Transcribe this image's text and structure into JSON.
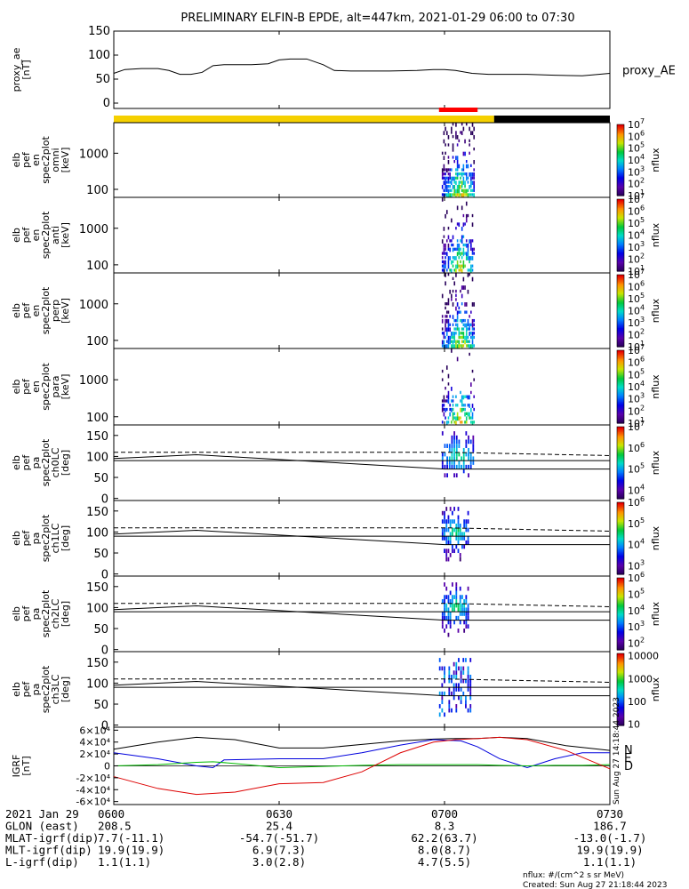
{
  "title": "PRELIMINARY ELFIN-B EPDE, alt=447km, 2021-01-29 06:00 to 07:30",
  "colors": {
    "sunlit_bar": "#f5d000",
    "eclipse_bar": "#000000",
    "science_bar": "#ff0000",
    "bx": "#0000dd",
    "by": "#00bb00",
    "bz": "#dd0000",
    "total": "#000000"
  },
  "time_axis": {
    "labels": [
      "0600",
      "0630",
      "0700",
      "0730"
    ],
    "rows": [
      {
        "label": "2021 Jan 29",
        "values": [
          "0600",
          "0630",
          "0700",
          "0730"
        ]
      },
      {
        "label": "GLON (east)",
        "values": [
          "208.5",
          "25.4",
          "8.3",
          "186.7"
        ]
      },
      {
        "label": "MLAT-igrf(dip)",
        "values": [
          "7.7(-11.1)",
          "-54.7(-51.7)",
          "62.2(63.7)",
          "-13.0(-1.7)"
        ]
      },
      {
        "label": "MLT-igrf(dip)",
        "values": [
          "19.9(19.9)",
          "6.9(7.3)",
          "8.0(8.7)",
          "19.9(19.9)"
        ]
      },
      {
        "label": "L-igrf(dip)",
        "values": [
          "1.1(1.1)",
          "3.0(2.8)",
          "4.7(5.5)",
          "1.1(1.1)"
        ]
      }
    ]
  },
  "footer": {
    "units": "nflux: #/(cm^2 s sr MeV)",
    "created": "Created: Sun Aug 27 21:18:44 2023",
    "stamp": "Sun Aug 27 14:18:44 2023"
  },
  "chart_data": [
    {
      "id": "proxy_ae",
      "type": "line",
      "ylabel": [
        "proxy_ae",
        "[nT]"
      ],
      "ylim": [
        0,
        150
      ],
      "yticks": [
        0,
        50,
        100,
        150
      ],
      "legend": "proxy_AE",
      "x_minutes": [
        0,
        2,
        5,
        8,
        10,
        12,
        14,
        16,
        18,
        20,
        22,
        25,
        28,
        30,
        32,
        35,
        38,
        40,
        43,
        45,
        50,
        55,
        58,
        60,
        62,
        65,
        68,
        70,
        72,
        75,
        80,
        85,
        88,
        90
      ],
      "values": [
        62,
        70,
        72,
        72,
        68,
        60,
        60,
        64,
        78,
        80,
        80,
        80,
        82,
        90,
        92,
        92,
        80,
        68,
        67,
        67,
        67,
        68,
        70,
        70,
        68,
        62,
        60,
        60,
        60,
        60,
        58,
        57,
        60,
        62
      ]
    },
    {
      "id": "bars",
      "type": "status",
      "sunlit_minutes": [
        0,
        69
      ],
      "eclipse_minutes": [
        69,
        90
      ],
      "science_minutes": [
        59,
        66
      ]
    },
    {
      "id": "omni",
      "type": "heatmap",
      "ylabel": [
        "elb",
        "pef",
        "en",
        "spec2plot",
        "omni",
        "[keV]"
      ],
      "yscale": "log",
      "ylim": [
        60,
        7000
      ],
      "yticks": [
        100,
        1000
      ],
      "yticklabels": [
        "100",
        "1000"
      ],
      "colorbar": {
        "label": "nflux",
        "exponents": [
          1,
          2,
          3,
          4,
          5,
          6,
          7
        ],
        "min_exp": 1,
        "max_exp": 7
      },
      "event_minutes": [
        59.5,
        65.5
      ]
    },
    {
      "id": "anti",
      "type": "heatmap",
      "ylabel": [
        "elb",
        "pef",
        "en",
        "spec2plot",
        "anti",
        "[keV]"
      ],
      "yscale": "log",
      "ylim": [
        60,
        7000
      ],
      "yticks": [
        100,
        1000
      ],
      "yticklabels": [
        "100",
        "1000"
      ],
      "colorbar": {
        "label": "nflux",
        "exponents": [
          1,
          2,
          3,
          4,
          5,
          6,
          7
        ],
        "min_exp": 1,
        "max_exp": 7
      },
      "event_minutes": [
        59.5,
        65.5
      ]
    },
    {
      "id": "perp",
      "type": "heatmap",
      "ylabel": [
        "elb",
        "pef",
        "en",
        "spec2plot",
        "perp",
        "[keV]"
      ],
      "yscale": "log",
      "ylim": [
        60,
        7000
      ],
      "yticks": [
        100,
        1000
      ],
      "yticklabels": [
        "100",
        "1000"
      ],
      "colorbar": {
        "label": "nflux",
        "exponents": [
          1,
          2,
          3,
          4,
          5,
          6,
          7
        ],
        "min_exp": 1,
        "max_exp": 7
      },
      "event_minutes": [
        59.5,
        65.5
      ]
    },
    {
      "id": "para",
      "type": "heatmap",
      "ylabel": [
        "elb",
        "pef",
        "en",
        "spec2plot",
        "para",
        "[keV]"
      ],
      "yscale": "log",
      "ylim": [
        60,
        7000
      ],
      "yticks": [
        100,
        1000
      ],
      "yticklabels": [
        "100",
        "1000"
      ],
      "colorbar": {
        "label": "nflux",
        "exponents": [
          1,
          2,
          3,
          4,
          5,
          6,
          7
        ],
        "min_exp": 1,
        "max_exp": 7
      },
      "event_minutes": [
        59.5,
        65.5
      ]
    },
    {
      "id": "ch0",
      "type": "heatmap",
      "ylabel": [
        "elb",
        "pef",
        "pa",
        "spec2plot",
        "ch0LC",
        "[deg]"
      ],
      "ylim": [
        -5,
        175
      ],
      "yticks": [
        0,
        50,
        100,
        150
      ],
      "yticklabels": [
        "0",
        "50",
        "100",
        "150"
      ],
      "colorbar": {
        "label": "nflux",
        "exponents": [
          4,
          5,
          6,
          7
        ],
        "min_exp": 3.6,
        "max_exp": 7
      },
      "event_minutes": [
        59.5,
        65.5
      ],
      "lc_x": [
        0,
        15,
        60,
        90
      ],
      "lc_solid": [
        95,
        104,
        70,
        70
      ],
      "lc_dashed": [
        110,
        110,
        110,
        102
      ],
      "lc_flat": 90
    },
    {
      "id": "ch1",
      "type": "heatmap",
      "ylabel": [
        "elb",
        "pef",
        "pa",
        "spec2plot",
        "ch1LC",
        "[deg]"
      ],
      "ylim": [
        -5,
        175
      ],
      "yticks": [
        0,
        50,
        100,
        150
      ],
      "yticklabels": [
        "0",
        "50",
        "100",
        "150"
      ],
      "colorbar": {
        "label": "nflux",
        "exponents": [
          3,
          4,
          5,
          6
        ],
        "min_exp": 2.6,
        "max_exp": 6
      },
      "event_minutes": [
        59.5,
        64.5
      ],
      "lc_x": [
        0,
        15,
        60,
        90
      ],
      "lc_solid": [
        95,
        104,
        70,
        70
      ],
      "lc_dashed": [
        110,
        110,
        110,
        102
      ],
      "lc_flat": 90
    },
    {
      "id": "ch2",
      "type": "heatmap",
      "ylabel": [
        "elb",
        "pef",
        "pa",
        "spec2plot",
        "ch2LC",
        "[deg]"
      ],
      "ylim": [
        -5,
        175
      ],
      "yticks": [
        0,
        50,
        100,
        150
      ],
      "yticklabels": [
        "0",
        "50",
        "100",
        "150"
      ],
      "colorbar": {
        "label": "nflux",
        "exponents": [
          2,
          3,
          4,
          5,
          6
        ],
        "min_exp": 1.6,
        "max_exp": 6
      },
      "event_minutes": [
        59.5,
        64.5
      ],
      "lc_x": [
        0,
        15,
        60,
        90
      ],
      "lc_solid": [
        95,
        104,
        70,
        70
      ],
      "lc_dashed": [
        110,
        110,
        110,
        102
      ],
      "lc_flat": 90
    },
    {
      "id": "ch3",
      "type": "heatmap",
      "ylabel": [
        "elb",
        "pef",
        "pa",
        "spec2plot",
        "ch3LC",
        "[deg]"
      ],
      "ylim": [
        -5,
        175
      ],
      "yticks": [
        0,
        50,
        100,
        150
      ],
      "yticklabels": [
        "0",
        "50",
        "100",
        "150"
      ],
      "colorbar": {
        "label": "nflux",
        "ticks": [
          "10",
          "100",
          "1000",
          "10000"
        ],
        "min_exp": 0.95,
        "max_exp": 4.1,
        "tick_exps": [
          1,
          2,
          3,
          4
        ]
      },
      "event_minutes": [
        59.0,
        65.0
      ],
      "lc_x": [
        0,
        15,
        60,
        90
      ],
      "lc_solid": [
        95,
        104,
        70,
        70
      ],
      "lc_dashed": [
        110,
        110,
        110,
        102
      ],
      "lc_flat": 90
    },
    {
      "id": "igrf",
      "type": "line",
      "ylabel": [
        "IGRF",
        "[nT]"
      ],
      "ylim": [
        -65000,
        65000
      ],
      "yticks": [
        -60000,
        -40000,
        -20000,
        0,
        20000,
        40000,
        60000
      ],
      "yticklabels": [
        "-6×10⁴",
        "-4×10⁴",
        "-2×10⁴",
        "0",
        "2×10⁴",
        "4×10⁴",
        "6×10⁴"
      ],
      "legend": [
        "N",
        "E",
        "D"
      ],
      "series": [
        {
          "name": "total",
          "color": "#000000",
          "x": [
            0,
            8,
            15,
            22,
            30,
            38,
            45,
            52,
            58,
            62,
            66,
            70,
            75,
            82,
            90
          ],
          "values": [
            28000,
            40000,
            48000,
            44000,
            30000,
            30000,
            36000,
            42000,
            45000,
            46000,
            46000,
            48000,
            46000,
            34000,
            26000
          ]
        },
        {
          "name": "bx",
          "color": "#0000dd",
          "x": [
            0,
            8,
            15,
            18,
            20,
            30,
            38,
            45,
            52,
            58,
            63,
            66,
            70,
            75,
            80,
            85,
            90
          ],
          "values": [
            22000,
            12000,
            0,
            -3000,
            10000,
            12000,
            12000,
            22000,
            35000,
            44000,
            42000,
            32000,
            12000,
            -3000,
            12000,
            22000,
            22000
          ]
        },
        {
          "name": "by",
          "color": "#00bb00",
          "x": [
            0,
            8,
            15,
            18,
            22,
            30,
            38,
            45,
            52,
            58,
            63,
            66,
            70,
            75,
            80,
            85,
            90
          ],
          "values": [
            0,
            2000,
            6000,
            7000,
            4000,
            -3000,
            -1000,
            1000,
            2000,
            2000,
            2000,
            2000,
            1000,
            0,
            1000,
            1000,
            2000
          ]
        },
        {
          "name": "bz",
          "color": "#dd0000",
          "x": [
            0,
            8,
            15,
            22,
            30,
            38,
            45,
            52,
            58,
            62,
            66,
            70,
            75,
            82,
            90
          ],
          "values": [
            -18000,
            -38000,
            -48000,
            -44000,
            -30000,
            -28000,
            -10000,
            22000,
            40000,
            44000,
            46000,
            48000,
            44000,
            26000,
            -5000
          ]
        }
      ]
    }
  ]
}
